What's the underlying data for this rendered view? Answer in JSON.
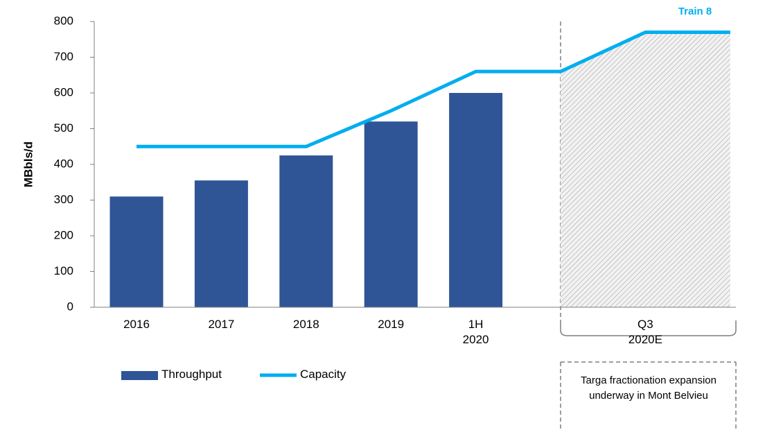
{
  "chart_data": {
    "type": "bar",
    "y_label": "MBbls/d",
    "categories": [
      "2016",
      "2017",
      "2018",
      "2019",
      "1H 2020",
      null,
      "Q3 2020E",
      null
    ],
    "series": [
      {
        "name": "Throughput",
        "color": "#2f5597",
        "type": "bar",
        "values": [
          310,
          355,
          425,
          520,
          600,
          null,
          null,
          null
        ]
      },
      {
        "name": "Capacity",
        "color": "#00aeef",
        "type": "line",
        "values": [
          450,
          450,
          450,
          550,
          660,
          660,
          770,
          770
        ]
      }
    ],
    "ylim": [
      0,
      800
    ],
    "yticks": [
      0,
      100,
      200,
      300,
      400,
      500,
      600,
      700,
      800
    ],
    "annotations": [
      "Train 8",
      "Targa fractionation expansion underway in Mont Belvieu"
    ],
    "hatched_from_category": 5,
    "legend": "bottom-left"
  }
}
